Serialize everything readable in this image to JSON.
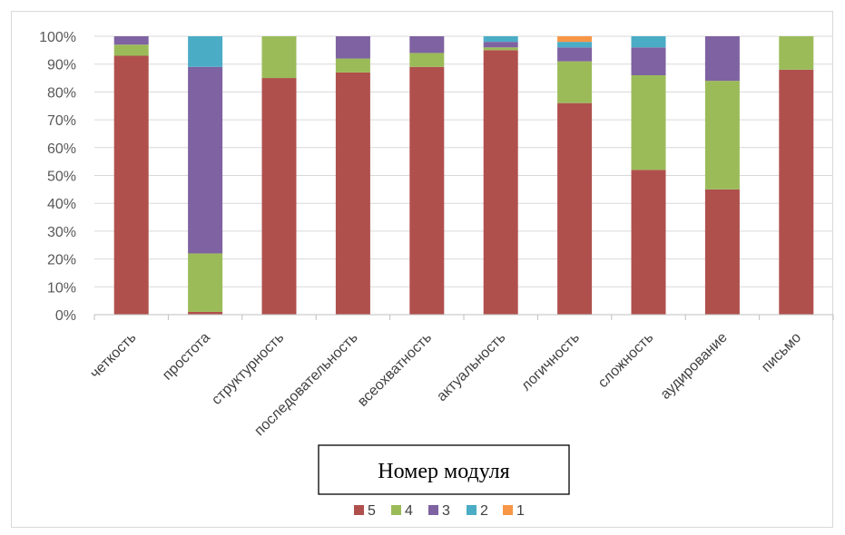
{
  "chart_data": {
    "type": "bar",
    "stacked": true,
    "percent": true,
    "title": "Номер модуля",
    "title_position": "bottom",
    "categories": [
      "четкость",
      "простота",
      "структурность",
      "последовательность",
      "всеохватность",
      "актуальность",
      "логичность",
      "сложность",
      "аудирование",
      "письмо"
    ],
    "series": [
      {
        "name": "5",
        "color": "#b0504d",
        "values": [
          93,
          1,
          85,
          87,
          89,
          95,
          76,
          52,
          45,
          88
        ]
      },
      {
        "name": "4",
        "color": "#9bbb59",
        "values": [
          4,
          21,
          15,
          5,
          5,
          1,
          15,
          34,
          39,
          12
        ]
      },
      {
        "name": "3",
        "color": "#7e62a1",
        "values": [
          3,
          67,
          0,
          8,
          6,
          2,
          5,
          10,
          16,
          0
        ]
      },
      {
        "name": "2",
        "color": "#4bacc6",
        "values": [
          0,
          11,
          0,
          0,
          0,
          2,
          2,
          4,
          0,
          0
        ]
      },
      {
        "name": "1",
        "color": "#f79646",
        "values": [
          0,
          0,
          0,
          0,
          0,
          0,
          2,
          0,
          0,
          0
        ]
      }
    ],
    "y_ticks": [
      "0%",
      "10%",
      "20%",
      "30%",
      "40%",
      "50%",
      "60%",
      "70%",
      "80%",
      "90%",
      "100%"
    ],
    "ylim": [
      0,
      100
    ],
    "grid": true,
    "legend_position": "bottom",
    "legend_order": [
      "5",
      "4",
      "3",
      "2",
      "1"
    ]
  }
}
